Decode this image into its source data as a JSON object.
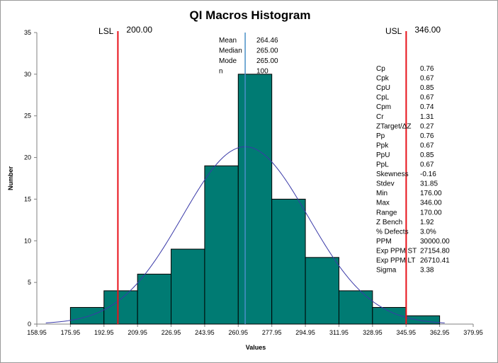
{
  "chart_data": {
    "type": "bar",
    "title": "QI Macros Histogram",
    "xlabel": "Values",
    "ylabel": "Number",
    "xlim": [
      158.95,
      379.95
    ],
    "ylim": [
      0,
      35
    ],
    "x_ticks": [
      "158.95",
      "175.95",
      "192.95",
      "209.95",
      "226.95",
      "243.95",
      "260.95",
      "277.95",
      "294.95",
      "311.95",
      "328.95",
      "345.95",
      "362.95",
      "379.95"
    ],
    "y_ticks": [
      "0",
      "5",
      "10",
      "15",
      "20",
      "25",
      "30",
      "35"
    ],
    "bins": [
      {
        "start": 175.95,
        "end": 192.95,
        "count": 2
      },
      {
        "start": 192.95,
        "end": 209.95,
        "count": 4
      },
      {
        "start": 209.95,
        "end": 226.95,
        "count": 6
      },
      {
        "start": 226.95,
        "end": 243.95,
        "count": 9
      },
      {
        "start": 243.95,
        "end": 260.95,
        "count": 19
      },
      {
        "start": 260.95,
        "end": 277.95,
        "count": 30
      },
      {
        "start": 277.95,
        "end": 294.95,
        "count": 15
      },
      {
        "start": 294.95,
        "end": 311.95,
        "count": 8
      },
      {
        "start": 311.95,
        "end": 328.95,
        "count": 4
      },
      {
        "start": 328.95,
        "end": 345.95,
        "count": 2
      },
      {
        "start": 345.95,
        "end": 362.95,
        "count": 1
      }
    ],
    "bar_color": "#007B73",
    "curve": {
      "mean": 264.46,
      "stdev": 31.85,
      "n": 100,
      "bin_width": 17,
      "x_from": 163.5,
      "x_to": 365.5,
      "color": "#3A3AA8"
    },
    "spec_limits": [
      {
        "name": "LSL",
        "value": 200.0,
        "value_label": "200.00",
        "color": "#E8121A"
      },
      {
        "name": "USL",
        "value": 346.0,
        "value_label": "346.00",
        "color": "#E8121A"
      }
    ],
    "mean_line": {
      "value": 264.46,
      "color": "#4A90C8"
    },
    "center_stats": [
      {
        "name": "Mean",
        "value": "264.46"
      },
      {
        "name": "Median",
        "value": "265.00"
      },
      {
        "name": "Mode",
        "value": "265.00"
      },
      {
        "name": "n",
        "value": "100"
      }
    ],
    "capability_stats": [
      {
        "name": "Cp",
        "value": "0.76"
      },
      {
        "name": "Cpk",
        "value": "0.67"
      },
      {
        "name": "CpU",
        "value": "0.85"
      },
      {
        "name": "CpL",
        "value": "0.67"
      },
      {
        "name": "Cpm",
        "value": "0.74"
      },
      {
        "name": "Cr",
        "value": "1.31",
        "highlight": "#E8121A"
      },
      {
        "name": "ZTarget/ΔZ",
        "value": "0.27"
      },
      {
        "name": "Pp",
        "value": "0.76"
      },
      {
        "name": "Ppk",
        "value": "0.67"
      },
      {
        "name": "PpU",
        "value": "0.85"
      },
      {
        "name": "PpL",
        "value": "0.67"
      },
      {
        "name": "Skewness",
        "value": "-0.16"
      },
      {
        "name": "Stdev",
        "value": "31.85"
      },
      {
        "name": "Min",
        "value": "176.00"
      },
      {
        "name": "Max",
        "value": "346.00"
      },
      {
        "name": "Range",
        "value": "170.00"
      },
      {
        "name": "Z Bench",
        "value": "1.92"
      },
      {
        "name": "% Defects",
        "value": "3.0%"
      },
      {
        "name": "PPM",
        "value": "30000.00"
      },
      {
        "name": "Exp PPM ST",
        "value": "27154.80"
      },
      {
        "name": "Exp PPM LT",
        "value": "26710.41"
      },
      {
        "name": "Sigma",
        "value": "3.38"
      }
    ]
  }
}
